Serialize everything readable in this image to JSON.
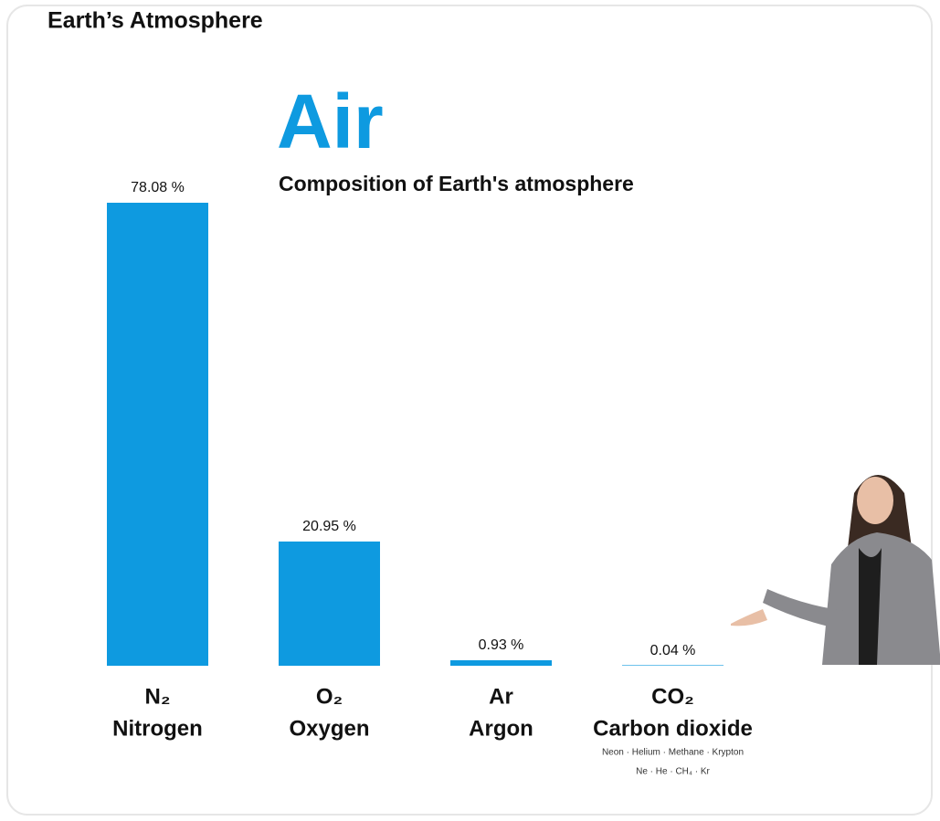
{
  "chart_data": {
    "type": "bar",
    "header": "Earth’s Atmosphere",
    "title": "Air",
    "subtitle": "Composition of Earth's atmosphere",
    "formulas": [
      "N₂",
      "O₂",
      "Ar",
      "CO₂"
    ],
    "categories": [
      "Nitrogen",
      "Oxygen",
      "Argon",
      "Carbon dioxide"
    ],
    "values": [
      78.08,
      20.95,
      0.93,
      0.04
    ],
    "value_labels": [
      "78.08 %",
      "20.95 %",
      "0.93 %",
      "0.04 %"
    ],
    "color": "#0e9ae0",
    "annotations": [
      "Neon · Helium · Methane · Krypton",
      "Ne · He · CH₄ · Kr"
    ]
  }
}
